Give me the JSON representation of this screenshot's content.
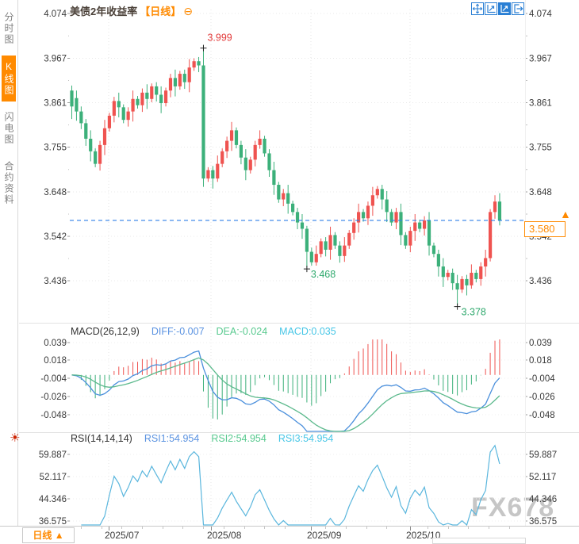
{
  "sidebar": {
    "tabs": [
      {
        "label": "分时图",
        "active": false
      },
      {
        "label": "K线图",
        "active": true
      },
      {
        "label": "闪电图",
        "active": false
      },
      {
        "label": "合约资料",
        "active": false
      }
    ],
    "active_color": "#ff8a00"
  },
  "titlebar": {
    "title": "美债2年收益率",
    "period": "【日线】",
    "collapse_glyph": "⊖"
  },
  "toolbar": {
    "icons": [
      "crosshair-move",
      "axis-auto-scale",
      "axis-scale-active",
      "exit-right"
    ]
  },
  "side_icons": {
    "sun": "☀"
  },
  "price_marker": {
    "value": "3.580",
    "arrow": "▲",
    "color": "#ff8a00"
  },
  "indicators": {
    "macd": {
      "name": "MACD(26,12,9)",
      "diff": "DIFF:-0.007",
      "dea": "DEA:-0.024",
      "macd": "MACD:0.035"
    },
    "rsi": {
      "name": "RSI(14,14,14)",
      "rsi1": "RSI1:54.954",
      "rsi2": "RSI2:54.954",
      "rsi3": "RSI3:54.954"
    }
  },
  "bottom_bar": {
    "period": "日线",
    "arrow": "▲"
  },
  "watermark": "FX678",
  "colors": {
    "up": "#ef5350",
    "down": "#3cb07a",
    "accent": "#ff8a00",
    "diff_line": "#4a8fdc",
    "dea_line": "#5bb98c",
    "rsi_line": "#5ab6dd",
    "current_price_line": "#2f7fe8",
    "toolbar_blue": "#2a7fd4",
    "annotation_up": "#e23b3b",
    "annotation_down": "#2fa96d"
  },
  "chart_data": {
    "type": "candlestick",
    "title": "美债2年收益率 【日线】",
    "price_ticks": [
      4.074,
      3.967,
      3.861,
      3.755,
      3.648,
      3.542,
      3.436
    ],
    "macd_ticks": [
      0.039,
      0.018,
      -0.004,
      -0.026,
      -0.048
    ],
    "rsi_ticks": [
      59.887,
      52.117,
      44.346,
      36.575
    ],
    "x_labels": [
      "2025/07",
      "2025/08",
      "2025/09",
      "2025/10"
    ],
    "current_price": 3.58,
    "macd_params": [
      26,
      12,
      9
    ],
    "macd_last": {
      "diff": -0.007,
      "dea": -0.024,
      "macd": 0.035
    },
    "rsi_params": [
      14,
      14,
      14
    ],
    "rsi_last": 54.954,
    "annotations": [
      {
        "text": "3.999",
        "candle": 28,
        "anchor": "high",
        "color": "#e23b3b"
      },
      {
        "text": "3.468",
        "candle": 50,
        "anchor": "low",
        "color": "#2fa96d"
      },
      {
        "text": "3.378",
        "candle": 82,
        "anchor": "low",
        "color": "#2fa96d"
      }
    ],
    "candles": [
      [
        3.89,
        3.902,
        3.822,
        3.852
      ],
      [
        3.872,
        3.89,
        3.818,
        3.84
      ],
      [
        3.84,
        3.852,
        3.798,
        3.812
      ],
      [
        3.812,
        3.822,
        3.758,
        3.775
      ],
      [
        3.775,
        3.795,
        3.721,
        3.745
      ],
      [
        3.745,
        3.752,
        3.707,
        3.715
      ],
      [
        3.715,
        3.77,
        3.699,
        3.76
      ],
      [
        3.76,
        3.82,
        3.736,
        3.8
      ],
      [
        3.8,
        3.837,
        3.792,
        3.83
      ],
      [
        3.83,
        3.875,
        3.814,
        3.865
      ],
      [
        3.865,
        3.885,
        3.826,
        3.85
      ],
      [
        3.85,
        3.857,
        3.812,
        3.82
      ],
      [
        3.82,
        3.85,
        3.804,
        3.84
      ],
      [
        3.84,
        3.89,
        3.816,
        3.87
      ],
      [
        3.87,
        3.877,
        3.847,
        3.855
      ],
      [
        3.855,
        3.895,
        3.839,
        3.885
      ],
      [
        3.885,
        3.905,
        3.846,
        3.87
      ],
      [
        3.87,
        3.907,
        3.862,
        3.9
      ],
      [
        3.9,
        3.91,
        3.864,
        3.88
      ],
      [
        3.88,
        3.9,
        3.836,
        3.86
      ],
      [
        3.86,
        3.897,
        3.852,
        3.89
      ],
      [
        3.89,
        3.93,
        3.874,
        3.92
      ],
      [
        3.92,
        3.94,
        3.876,
        3.9
      ],
      [
        3.9,
        3.937,
        3.892,
        3.93
      ],
      [
        3.93,
        3.94,
        3.894,
        3.91
      ],
      [
        3.91,
        3.965,
        3.886,
        3.945
      ],
      [
        3.945,
        3.967,
        3.937,
        3.96
      ],
      [
        3.96,
        3.97,
        3.934,
        3.95
      ],
      [
        3.95,
        3.999,
        3.66,
        3.68
      ],
      [
        3.68,
        3.707,
        3.672,
        3.7
      ],
      [
        3.7,
        3.71,
        3.656,
        3.68
      ],
      [
        3.68,
        3.735,
        3.672,
        3.715
      ],
      [
        3.715,
        3.752,
        3.707,
        3.745
      ],
      [
        3.745,
        3.78,
        3.729,
        3.77
      ],
      [
        3.77,
        3.815,
        3.746,
        3.795
      ],
      [
        3.795,
        3.802,
        3.752,
        3.76
      ],
      [
        3.76,
        3.77,
        3.714,
        3.73
      ],
      [
        3.73,
        3.75,
        3.676,
        3.7
      ],
      [
        3.7,
        3.732,
        3.692,
        3.725
      ],
      [
        3.725,
        3.77,
        3.709,
        3.76
      ],
      [
        3.76,
        3.795,
        3.751,
        3.775
      ],
      [
        3.775,
        3.782,
        3.732,
        3.74
      ],
      [
        3.74,
        3.75,
        3.684,
        3.7
      ],
      [
        3.7,
        3.72,
        3.641,
        3.665
      ],
      [
        3.665,
        3.672,
        3.622,
        3.63
      ],
      [
        3.63,
        3.655,
        3.614,
        3.645
      ],
      [
        3.645,
        3.665,
        3.596,
        3.62
      ],
      [
        3.62,
        3.627,
        3.592,
        3.6
      ],
      [
        3.6,
        3.61,
        3.559,
        3.575
      ],
      [
        3.575,
        3.595,
        3.536,
        3.56
      ],
      [
        3.56,
        3.567,
        3.468,
        3.505
      ],
      [
        3.505,
        3.515,
        3.472,
        3.48
      ],
      [
        3.48,
        3.52,
        3.472,
        3.5
      ],
      [
        3.5,
        3.537,
        3.492,
        3.53
      ],
      [
        3.53,
        3.54,
        3.494,
        3.51
      ],
      [
        3.51,
        3.565,
        3.486,
        3.545
      ],
      [
        3.545,
        3.552,
        3.512,
        3.52
      ],
      [
        3.52,
        3.53,
        3.479,
        3.495
      ],
      [
        3.495,
        3.54,
        3.481,
        3.52
      ],
      [
        3.52,
        3.557,
        3.512,
        3.55
      ],
      [
        3.55,
        3.585,
        3.534,
        3.575
      ],
      [
        3.575,
        3.62,
        3.551,
        3.6
      ],
      [
        3.6,
        3.607,
        3.577,
        3.585
      ],
      [
        3.585,
        3.625,
        3.569,
        3.615
      ],
      [
        3.615,
        3.66,
        3.591,
        3.64
      ],
      [
        3.64,
        3.662,
        3.632,
        3.655
      ],
      [
        3.655,
        3.665,
        3.606,
        3.63
      ],
      [
        3.63,
        3.65,
        3.576,
        3.6
      ],
      [
        3.6,
        3.607,
        3.567,
        3.575
      ],
      [
        3.575,
        3.61,
        3.559,
        3.6
      ],
      [
        3.6,
        3.62,
        3.521,
        3.545
      ],
      [
        3.545,
        3.552,
        3.512,
        3.52
      ],
      [
        3.52,
        3.565,
        3.504,
        3.555
      ],
      [
        3.555,
        3.595,
        3.531,
        3.575
      ],
      [
        3.575,
        3.582,
        3.552,
        3.56
      ],
      [
        3.56,
        3.59,
        3.544,
        3.58
      ],
      [
        3.58,
        3.6,
        3.496,
        3.52
      ],
      [
        3.52,
        3.527,
        3.492,
        3.5
      ],
      [
        3.5,
        3.51,
        3.446,
        3.47
      ],
      [
        3.47,
        3.49,
        3.421,
        3.445
      ],
      [
        3.445,
        3.462,
        3.437,
        3.455
      ],
      [
        3.455,
        3.465,
        3.414,
        3.43
      ],
      [
        3.43,
        3.45,
        3.378,
        3.415
      ],
      [
        3.415,
        3.447,
        3.407,
        3.44
      ],
      [
        3.44,
        3.45,
        3.401,
        3.425
      ],
      [
        3.425,
        3.475,
        3.417,
        3.455
      ],
      [
        3.455,
        3.462,
        3.432,
        3.44
      ],
      [
        3.44,
        3.48,
        3.424,
        3.47
      ],
      [
        3.47,
        3.51,
        3.446,
        3.49
      ],
      [
        3.49,
        3.607,
        3.482,
        3.6
      ],
      [
        3.6,
        3.64,
        3.584,
        3.625
      ],
      [
        3.625,
        3.645,
        3.568,
        3.58
      ]
    ]
  }
}
